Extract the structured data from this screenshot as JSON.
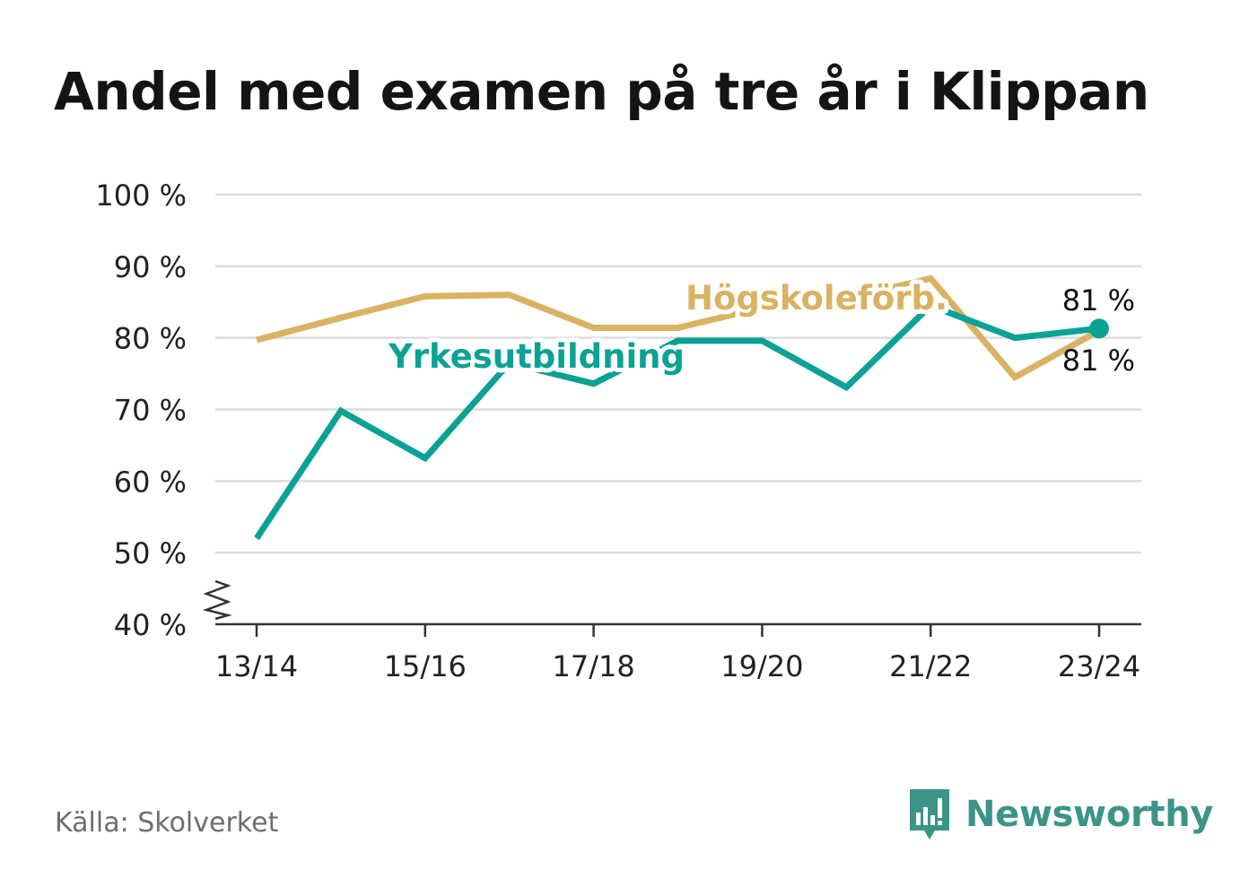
{
  "header": {
    "title": "Andel med examen på tre år i Klippan"
  },
  "footer": {
    "source": "Källa: Skolverket",
    "brand": "Newsworthy",
    "brand_icon": "bar-chart-speech-bubble-icon"
  },
  "colors": {
    "yrkes": "#0aa294",
    "hogskole": "#d9b262",
    "grid": "#dcdcdc",
    "axis": "#333333",
    "text": "#222222"
  },
  "chart_data": {
    "type": "line",
    "title": "Andel med examen på tre år i Klippan",
    "x": [
      "13/14",
      "14/15",
      "15/16",
      "16/17",
      "17/18",
      "18/19",
      "19/20",
      "20/21",
      "21/22",
      "22/23",
      "23/24"
    ],
    "xticks": [
      "13/14",
      "15/16",
      "17/18",
      "19/20",
      "21/22",
      "23/24"
    ],
    "yticks": [
      "40 %",
      "50 %",
      "60 %",
      "70 %",
      "80 %",
      "90 %",
      "100 %"
    ],
    "ylim": [
      40,
      100
    ],
    "y_axis_break": true,
    "grid": true,
    "series": [
      {
        "name": "Högskoleförb.",
        "color": "#d9b262",
        "values": [
          79.7,
          82.8,
          85.8,
          86.0,
          81.4,
          81.4,
          84.2,
          85.5,
          88.3,
          74.5,
          81.0
        ],
        "end_label": "81 %"
      },
      {
        "name": "Yrkesutbildning",
        "color": "#0aa294",
        "values": [
          52.0,
          69.8,
          63.2,
          76.5,
          73.6,
          79.6,
          79.6,
          73.1,
          84.5,
          80.0,
          81.3
        ],
        "end_label": "81 %"
      }
    ]
  }
}
